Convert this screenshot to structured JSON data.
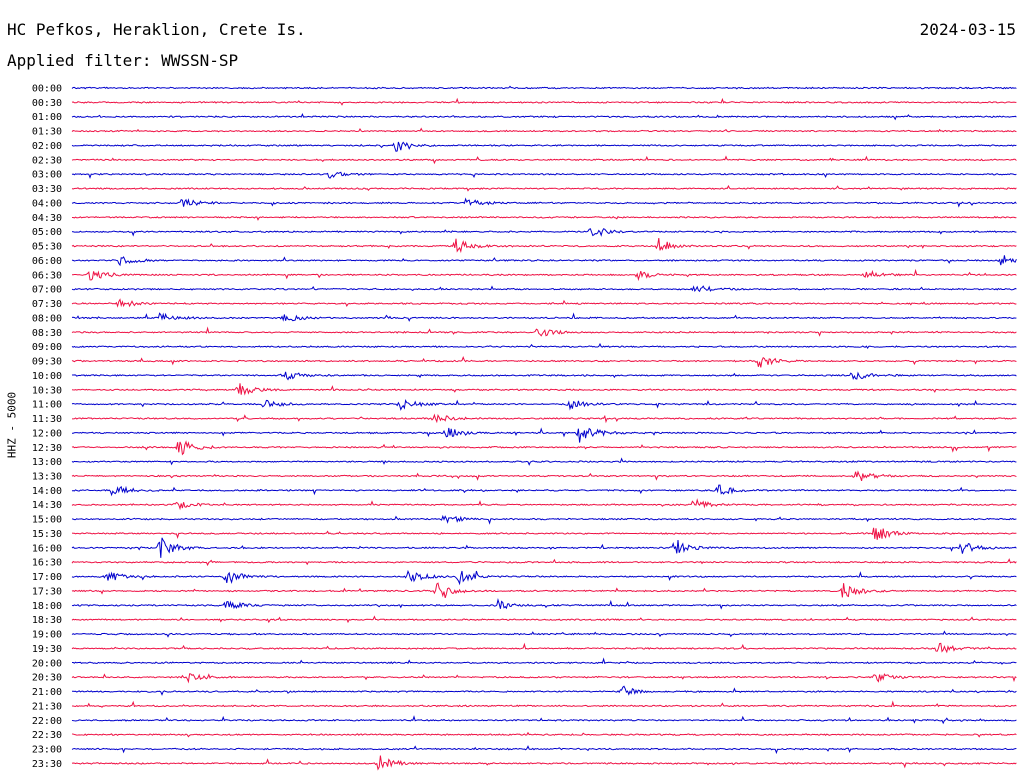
{
  "header": {
    "station": "HC Pefkos, Heraklion, Crete Is.",
    "filter": "Applied filter: WWSSN-SP",
    "date": "2024-03-15"
  },
  "chart_data": {
    "type": "line",
    "ylabel": "HHZ - 5000",
    "row_labels": [
      "00:00",
      "00:30",
      "01:00",
      "01:30",
      "02:00",
      "02:30",
      "03:00",
      "03:30",
      "04:00",
      "04:30",
      "05:00",
      "05:30",
      "06:00",
      "06:30",
      "07:00",
      "07:30",
      "08:00",
      "08:30",
      "09:00",
      "09:30",
      "10:00",
      "10:30",
      "11:00",
      "11:30",
      "12:00",
      "12:30",
      "13:00",
      "13:30",
      "14:00",
      "14:30",
      "15:00",
      "15:30",
      "16:00",
      "16:30",
      "17:00",
      "17:30",
      "18:00",
      "18:30",
      "19:00",
      "19:30",
      "20:00",
      "20:30",
      "21:00",
      "21:30",
      "22:00",
      "22:30",
      "23:00",
      "23:30"
    ],
    "series_colors": [
      "#0000cc",
      "#ee1144"
    ],
    "events": [
      {
        "row": 4,
        "minute": 10.3,
        "amp": 6
      },
      {
        "row": 6,
        "minute": 8.2,
        "amp": 4
      },
      {
        "row": 8,
        "minute": 3.5,
        "amp": 5
      },
      {
        "row": 8,
        "minute": 12.5,
        "amp": 5
      },
      {
        "row": 10,
        "minute": 16.5,
        "amp": 6
      },
      {
        "row": 11,
        "minute": 12.2,
        "amp": 8
      },
      {
        "row": 11,
        "minute": 18.6,
        "amp": 8
      },
      {
        "row": 12,
        "minute": 1.5,
        "amp": 6
      },
      {
        "row": 12,
        "minute": 29.5,
        "amp": 6
      },
      {
        "row": 13,
        "minute": 0.6,
        "amp": 7
      },
      {
        "row": 13,
        "minute": 17.9,
        "amp": 5
      },
      {
        "row": 13,
        "minute": 25.2,
        "amp": 5
      },
      {
        "row": 14,
        "minute": 19.8,
        "amp": 5
      },
      {
        "row": 15,
        "minute": 1.5,
        "amp": 5
      },
      {
        "row": 16,
        "minute": 2.8,
        "amp": 5
      },
      {
        "row": 16,
        "minute": 6.7,
        "amp": 5
      },
      {
        "row": 17,
        "minute": 14.8,
        "amp": 6
      },
      {
        "row": 19,
        "minute": 21.8,
        "amp": 8
      },
      {
        "row": 20,
        "minute": 6.7,
        "amp": 7
      },
      {
        "row": 20,
        "minute": 24.8,
        "amp": 7
      },
      {
        "row": 21,
        "minute": 5.3,
        "amp": 7
      },
      {
        "row": 22,
        "minute": 6.1,
        "amp": 5
      },
      {
        "row": 22,
        "minute": 10.4,
        "amp": 6
      },
      {
        "row": 22,
        "minute": 15.8,
        "amp": 6
      },
      {
        "row": 23,
        "minute": 11.5,
        "amp": 6
      },
      {
        "row": 24,
        "minute": 11.9,
        "amp": 6
      },
      {
        "row": 24,
        "minute": 16.1,
        "amp": 12
      },
      {
        "row": 25,
        "minute": 3.4,
        "amp": 9
      },
      {
        "row": 27,
        "minute": 24.9,
        "amp": 7
      },
      {
        "row": 28,
        "minute": 1.3,
        "amp": 6
      },
      {
        "row": 28,
        "minute": 20.5,
        "amp": 6
      },
      {
        "row": 29,
        "minute": 3.3,
        "amp": 6
      },
      {
        "row": 29,
        "minute": 19.7,
        "amp": 7
      },
      {
        "row": 30,
        "minute": 11.8,
        "amp": 5
      },
      {
        "row": 31,
        "minute": 25.5,
        "amp": 9
      },
      {
        "row": 32,
        "minute": 2.8,
        "amp": 11
      },
      {
        "row": 32,
        "minute": 19.1,
        "amp": 8
      },
      {
        "row": 32,
        "minute": 28.2,
        "amp": 7
      },
      {
        "row": 34,
        "minute": 1.1,
        "amp": 6
      },
      {
        "row": 34,
        "minute": 4.9,
        "amp": 8
      },
      {
        "row": 34,
        "minute": 10.7,
        "amp": 7
      },
      {
        "row": 34,
        "minute": 12.3,
        "amp": 7
      },
      {
        "row": 35,
        "minute": 11.6,
        "amp": 8
      },
      {
        "row": 35,
        "minute": 24.5,
        "amp": 9
      },
      {
        "row": 36,
        "minute": 4.9,
        "amp": 6
      },
      {
        "row": 36,
        "minute": 13.5,
        "amp": 5
      },
      {
        "row": 39,
        "minute": 27.5,
        "amp": 6
      },
      {
        "row": 41,
        "minute": 3.6,
        "amp": 5
      },
      {
        "row": 41,
        "minute": 25.5,
        "amp": 6
      },
      {
        "row": 42,
        "minute": 17.5,
        "amp": 5
      },
      {
        "row": 47,
        "minute": 9.7,
        "amp": 10
      }
    ]
  }
}
